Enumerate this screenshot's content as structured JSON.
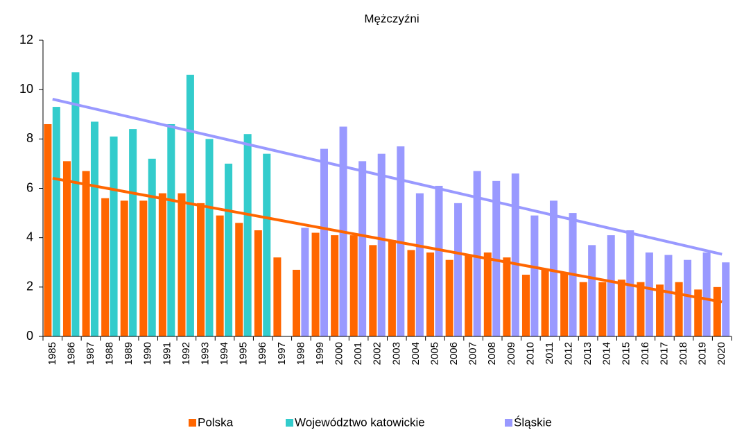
{
  "chart_data": {
    "type": "bar",
    "title": "Mężczyźni",
    "categories": [
      "1985",
      "1986",
      "1987",
      "1988",
      "1989",
      "1990",
      "1991",
      "1992",
      "1993",
      "1994",
      "1995",
      "1996",
      "1997",
      "1998",
      "1999",
      "2000",
      "2001",
      "2002",
      "2003",
      "2004",
      "2005",
      "2006",
      "2007",
      "2008",
      "2009",
      "2010",
      "2011",
      "2012",
      "2013",
      "2014",
      "2015",
      "2016",
      "2017",
      "2018",
      "2019",
      "2020"
    ],
    "series": [
      {
        "name": "Polska",
        "color": "#ff6600",
        "values": [
          8.6,
          7.1,
          6.7,
          5.6,
          5.5,
          5.5,
          5.8,
          5.8,
          5.4,
          4.9,
          4.6,
          4.3,
          3.2,
          2.7,
          4.2,
          4.1,
          4.1,
          3.7,
          3.9,
          3.5,
          3.4,
          3.1,
          3.3,
          3.4,
          3.2,
          2.5,
          2.7,
          2.6,
          2.2,
          2.2,
          2.3,
          2.2,
          2.1,
          2.2,
          1.9,
          2.0
        ]
      },
      {
        "name": "Województwo katowickie",
        "color": "#33cccc",
        "values": [
          9.3,
          10.7,
          8.7,
          8.1,
          8.4,
          7.2,
          8.6,
          10.6,
          8.0,
          7.0,
          8.2,
          7.4,
          null,
          null,
          null,
          null,
          null,
          null,
          null,
          null,
          null,
          null,
          null,
          null,
          null,
          null,
          null,
          null,
          null,
          null,
          null,
          null,
          null,
          null,
          null,
          null
        ]
      },
      {
        "name": "Śląskie",
        "color": "#9999ff",
        "values": [
          null,
          null,
          null,
          null,
          null,
          null,
          null,
          null,
          null,
          null,
          null,
          null,
          null,
          4.4,
          7.6,
          8.5,
          7.1,
          7.4,
          7.7,
          5.8,
          6.1,
          5.4,
          6.7,
          6.3,
          6.6,
          4.9,
          5.5,
          5.0,
          3.7,
          4.1,
          4.3,
          3.4,
          3.3,
          3.1,
          3.4,
          3.0
        ]
      }
    ],
    "ylim": [
      0,
      12
    ],
    "yticks": [
      0,
      2,
      4,
      6,
      8,
      10,
      12
    ],
    "grid": false,
    "legend": "bottom"
  }
}
